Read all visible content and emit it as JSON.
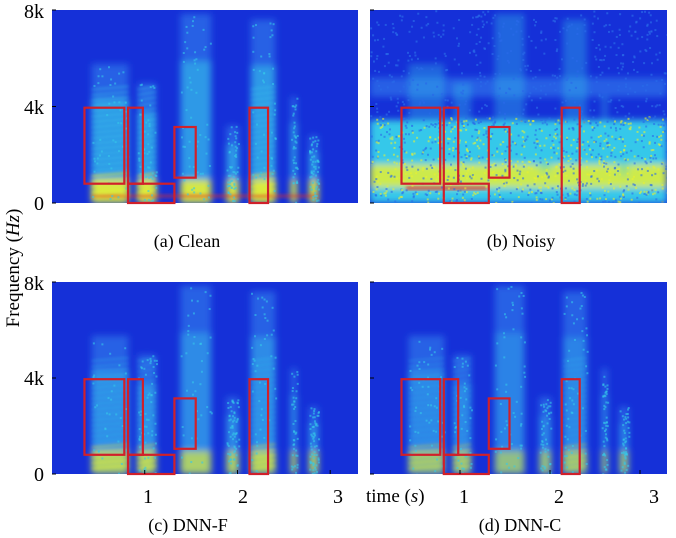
{
  "chart_data": {
    "type": "heatmap",
    "layout": "2x2 grid of spectrograms",
    "ylabel_text": "Frequency (",
    "ylabel_var": "Hz",
    "ylabel_close": ")",
    "ylim_hz": [
      0,
      8000
    ],
    "y_ticks": [
      {
        "value": 0,
        "label": "0"
      },
      {
        "value": 4000,
        "label": "4k"
      },
      {
        "value": 8000,
        "label": "8k"
      }
    ],
    "xlim_s": [
      0.0,
      3.3
    ],
    "x_ticks": [
      {
        "value": 1,
        "label": "1"
      },
      {
        "value": 2,
        "label": "2"
      },
      {
        "value": 3,
        "label": "3"
      }
    ],
    "xlabel_text": "time (",
    "xlabel_var": "s",
    "xlabel_close": ")",
    "colormap": [
      "#1530d8",
      "#2a6ae8",
      "#35c8ea",
      "#e8f030",
      "#e8281c"
    ],
    "box_color": "#d0202a",
    "highlight_regions": [
      {
        "t0": 0.35,
        "t1": 0.78,
        "f0": 800,
        "f1": 3950
      },
      {
        "t0": 0.82,
        "t1": 0.98,
        "f0": 800,
        "f1": 3950
      },
      {
        "t0": 0.82,
        "t1": 1.32,
        "f0": 0,
        "f1": 800
      },
      {
        "t0": 1.32,
        "t1": 1.55,
        "f0": 1050,
        "f1": 3150
      },
      {
        "t0": 2.13,
        "t1": 2.33,
        "f0": 0,
        "f1": 3950
      }
    ],
    "panels": [
      {
        "caption": "(a) Clean",
        "condition": "clean"
      },
      {
        "caption": "(b) Noisy",
        "condition": "noisy"
      },
      {
        "caption": "(c) DNN-F",
        "condition": "dnn-f"
      },
      {
        "caption": "(d) DNN-C",
        "condition": "dnn-c"
      }
    ]
  }
}
